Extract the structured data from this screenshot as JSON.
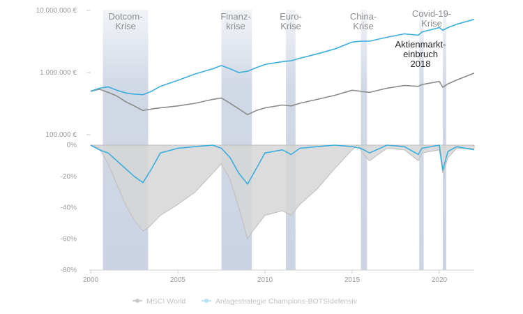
{
  "chart_data": [
    {
      "type": "line",
      "name": "upper",
      "y_scale": "log",
      "y_ticks": [
        {
          "value": 10000000,
          "label": "10.000.000 €"
        },
        {
          "value": 1000000,
          "label": "1.000.000 €"
        },
        {
          "value": 100000,
          "label": "100.000 €"
        }
      ],
      "ylim": [
        100000,
        10000000
      ],
      "xlim": [
        2000,
        2022
      ],
      "series": [
        {
          "name": "MSCI World",
          "color": "#8a8a8a",
          "x": [
            2000.0,
            2000.5,
            2001.0,
            2001.5,
            2002.0,
            2002.5,
            2003.0,
            2003.5,
            2004.0,
            2005.0,
            2006.0,
            2007.0,
            2007.5,
            2008.0,
            2008.5,
            2009.0,
            2009.5,
            2010.0,
            2011.0,
            2011.5,
            2012.0,
            2013.0,
            2014.0,
            2015.0,
            2015.5,
            2016.0,
            2017.0,
            2018.0,
            2018.8,
            2019.0,
            2020.0,
            2020.2,
            2020.5,
            2021.0,
            2022.0
          ],
          "y": [
            500000,
            540000,
            480000,
            420000,
            340000,
            290000,
            245000,
            260000,
            270000,
            290000,
            320000,
            370000,
            390000,
            320000,
            260000,
            210000,
            245000,
            270000,
            300000,
            290000,
            320000,
            370000,
            430000,
            520000,
            500000,
            480000,
            560000,
            620000,
            600000,
            640000,
            720000,
            580000,
            660000,
            760000,
            980000
          ]
        },
        {
          "name": "Anlagestrategie Champions-BOTSIdefensiv",
          "color": "#3aaede",
          "x": [
            2000.0,
            2000.5,
            2001.0,
            2001.5,
            2002.0,
            2002.5,
            2003.0,
            2003.5,
            2004.0,
            2005.0,
            2006.0,
            2007.0,
            2007.5,
            2008.0,
            2008.5,
            2009.0,
            2009.5,
            2010.0,
            2011.0,
            2011.5,
            2012.0,
            2013.0,
            2014.0,
            2015.0,
            2015.5,
            2016.0,
            2017.0,
            2018.0,
            2018.8,
            2019.0,
            2020.0,
            2020.2,
            2020.5,
            2021.0,
            2022.0
          ],
          "y": [
            500000,
            560000,
            590000,
            520000,
            470000,
            450000,
            440000,
            500000,
            600000,
            750000,
            950000,
            1150000,
            1300000,
            1150000,
            1000000,
            1050000,
            1200000,
            1350000,
            1500000,
            1550000,
            1700000,
            2000000,
            2400000,
            3100000,
            3200000,
            3200000,
            3700000,
            4200000,
            4000000,
            4500000,
            5300000,
            4800000,
            5300000,
            6000000,
            7200000
          ]
        }
      ]
    },
    {
      "type": "area",
      "name": "lower",
      "y_ticks": [
        0,
        -20,
        -40,
        -60,
        -80
      ],
      "y_tick_labels": [
        "0%",
        "-20%",
        "-40%",
        "-60%",
        "-80%"
      ],
      "ylim": [
        -80,
        0
      ],
      "xlim": [
        2000,
        2022
      ],
      "x_ticks": [
        2000,
        2005,
        2010,
        2015,
        2020
      ],
      "x_tick_labels": [
        "2000",
        "2005",
        "2010",
        "2015",
        "2020"
      ],
      "series": [
        {
          "name": "MSCI World",
          "color": "#bdbdbd",
          "fill": "#d6d6d6",
          "x": [
            2000.0,
            2000.5,
            2001.0,
            2001.5,
            2002.0,
            2002.5,
            2003.0,
            2003.3,
            2004.0,
            2005.0,
            2006.0,
            2007.0,
            2007.5,
            2008.0,
            2008.5,
            2009.0,
            2009.3,
            2010.0,
            2011.0,
            2011.5,
            2012.0,
            2013.0,
            2014.0,
            2015.0,
            2015.3,
            2015.8,
            2016.0,
            2017.0,
            2018.0,
            2018.8,
            2019.0,
            2020.0,
            2020.2,
            2020.5,
            2021.0,
            2022.0
          ],
          "y": [
            0,
            -2,
            -12,
            -25,
            -38,
            -48,
            -55,
            -53,
            -45,
            -38,
            -30,
            -18,
            -12,
            -22,
            -40,
            -60,
            -55,
            -45,
            -42,
            -45,
            -38,
            -28,
            -15,
            -3,
            0,
            -8,
            -10,
            -2,
            -3,
            -10,
            -5,
            -3,
            -18,
            -8,
            -2,
            -2
          ]
        },
        {
          "name": "Anlagestrategie Champions-BOTSIdefensiv",
          "color": "#3aaede",
          "x": [
            2000.0,
            2000.5,
            2001.0,
            2001.5,
            2002.0,
            2002.5,
            2003.0,
            2003.5,
            2004.0,
            2005.0,
            2006.0,
            2007.0,
            2007.5,
            2008.0,
            2008.5,
            2009.0,
            2009.5,
            2010.0,
            2011.0,
            2011.5,
            2012.0,
            2013.0,
            2014.0,
            2015.0,
            2015.5,
            2016.0,
            2017.0,
            2018.0,
            2018.8,
            2019.0,
            2020.0,
            2020.2,
            2020.5,
            2021.0,
            2022.0
          ],
          "y": [
            0,
            -3,
            -5,
            -10,
            -15,
            -20,
            -24,
            -15,
            -5,
            -2,
            -1,
            0,
            -2,
            -8,
            -18,
            -25,
            -15,
            -5,
            -3,
            -6,
            -2,
            -1,
            0,
            -1,
            -2,
            -5,
            0,
            -1,
            -6,
            -2,
            0,
            -16,
            -4,
            -1,
            -3
          ]
        }
      ]
    }
  ],
  "crises": [
    {
      "label_lines": [
        "Dotcom-",
        "Krise"
      ],
      "x0": 2000.7,
      "x1": 2003.3,
      "dark": false
    },
    {
      "label_lines": [
        "Finanz-",
        "krise"
      ],
      "x0": 2007.5,
      "x1": 2009.25,
      "dark": false
    },
    {
      "label_lines": [
        "Euro-",
        "Krise"
      ],
      "x0": 2011.2,
      "x1": 2011.75,
      "dark": false
    },
    {
      "label_lines": [
        "China-",
        "Krise"
      ],
      "x0": 2015.5,
      "x1": 2015.85,
      "dark": false
    },
    {
      "label_lines": [
        "Aktienmarkt-",
        "einbruch",
        "2018"
      ],
      "x0": 2018.85,
      "x1": 2019.1,
      "dark": true
    },
    {
      "label_lines": [
        "Covid-19-",
        "Krise"
      ],
      "x0": 2020.2,
      "x1": 2020.4,
      "dark": false
    }
  ],
  "legend": [
    {
      "label": "MSCI World",
      "color": "#c8c8c8"
    },
    {
      "label": "Anlagestrategie Champions-BOTSIdefensiv",
      "color": "#b7e0f2"
    }
  ],
  "colors": {
    "crisis_band": "#c9d1e1",
    "axis": "#cfcfcf"
  }
}
